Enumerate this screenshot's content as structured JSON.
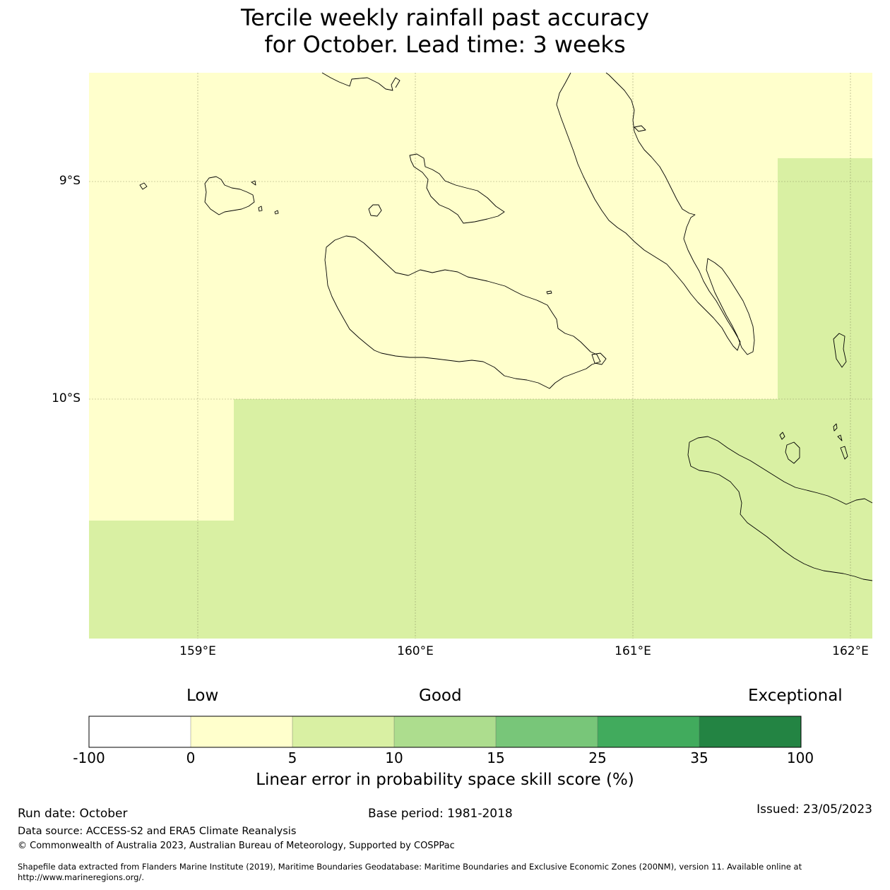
{
  "title": {
    "line1": "Tercile weekly rainfall past accuracy",
    "line2": "for October. Lead time: 3 weeks"
  },
  "map": {
    "lon_range": [
      158.5,
      162.1
    ],
    "lat_range": [
      -11.1,
      -8.5
    ],
    "lat_ticks": [
      {
        "value": -9,
        "label": "9°S"
      },
      {
        "value": -10,
        "label": "10°S"
      }
    ],
    "lon_ticks": [
      {
        "value": 159,
        "label": "159°E"
      },
      {
        "value": 160,
        "label": "160°E"
      },
      {
        "value": 161,
        "label": "161°E"
      },
      {
        "value": 162,
        "label": "162°E"
      }
    ],
    "skill_regions": [
      {
        "category": "0-5",
        "color": "#ffffcc"
      },
      {
        "category": "5-10",
        "color": "#d9f0a3"
      }
    ]
  },
  "colorbar": {
    "categories": [
      {
        "label": "Low"
      },
      {
        "label": "Good"
      },
      {
        "label": "Exceptional"
      }
    ],
    "bins": [
      {
        "color": "#ffffff"
      },
      {
        "color": "#ffffcc"
      },
      {
        "color": "#d9f0a3"
      },
      {
        "color": "#addd8e"
      },
      {
        "color": "#78c679"
      },
      {
        "color": "#41ab5d"
      },
      {
        "color": "#238443"
      }
    ],
    "ticks": [
      "-100",
      "0",
      "5",
      "10",
      "15",
      "25",
      "35",
      "100"
    ],
    "label": "Linear error in probability space skill score (%)"
  },
  "footer": {
    "run_date": "Run date: October",
    "base_period": "Base period: 1981-2018",
    "issued": "Issued: 23/05/2023",
    "data_source": "Data source: ACCESS-S2 and ERA5 Climate Reanalysis",
    "copyright": "© Commonwealth of Australia 2023, Australian Bureau of Meteorology, Supported by COSPPac",
    "shapefile_line1": "Shapefile data extracted from Flanders Marine Institute (2019), Maritime Boundaries Geodatabase: Maritime Boundaries and Exclusive Economic Zones (200NM), version 11. Available online at",
    "shapefile_line2": "http://www.marineregions.org/."
  }
}
